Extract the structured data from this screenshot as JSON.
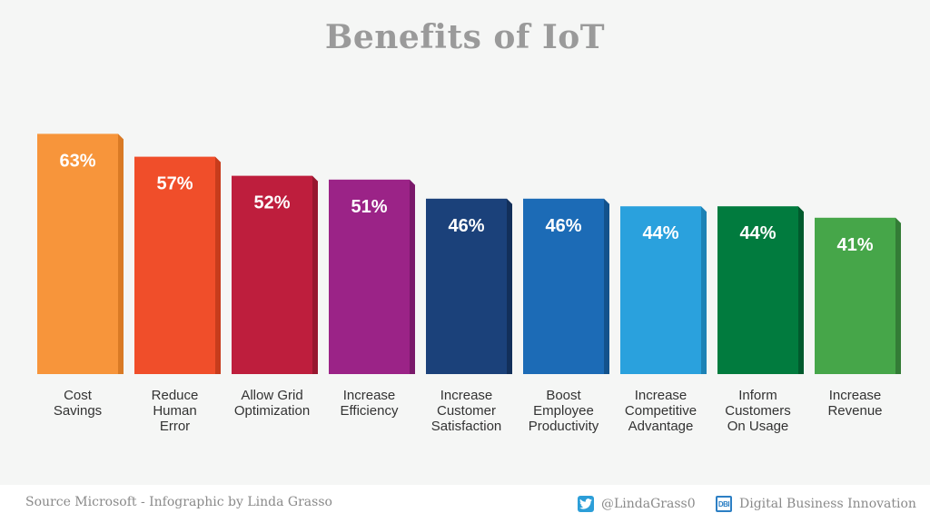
{
  "chart_data": {
    "type": "bar",
    "title": "Benefits of IoT",
    "categories": [
      [
        "Cost",
        "Savings"
      ],
      [
        "Reduce",
        "Human",
        "Error"
      ],
      [
        "Allow Grid",
        "Optimization"
      ],
      [
        "Increase",
        "Efficiency"
      ],
      [
        "Increase",
        "Customer",
        "Satisfaction"
      ],
      [
        "Boost",
        "Employee",
        "Productivity"
      ],
      [
        "Increase",
        "Competitive",
        "Advantage"
      ],
      [
        "Inform",
        "Customers",
        "On Usage"
      ],
      [
        "Increase",
        "Revenue"
      ]
    ],
    "values": [
      63,
      57,
      52,
      51,
      46,
      46,
      44,
      44,
      41
    ],
    "value_labels": [
      "63%",
      "57%",
      "52%",
      "51%",
      "46%",
      "46%",
      "44%",
      "44%",
      "41%"
    ],
    "colors": [
      "#f7953b",
      "#f04e2a",
      "#be1e3d",
      "#9b2387",
      "#1b417a",
      "#1c6bb6",
      "#2aa1dd",
      "#017b3e",
      "#46a649"
    ],
    "shade_colors": [
      "#d97a25",
      "#c73c1c",
      "#97172f",
      "#7a196a",
      "#122f5a",
      "#13528c",
      "#1d82b5",
      "#015a2d",
      "#337c36"
    ],
    "unit": "%",
    "grid": false,
    "legend": "none"
  },
  "footer": {
    "source": "Source Microsoft - Infographic by Linda Grasso",
    "twitter_handle": "@LindaGrass0",
    "brand_name": "Digital Business Innovation",
    "brand_icon_text": "DBI",
    "twitter_icon": "twitter-icon",
    "brand_icon": "dbi-logo-icon"
  }
}
